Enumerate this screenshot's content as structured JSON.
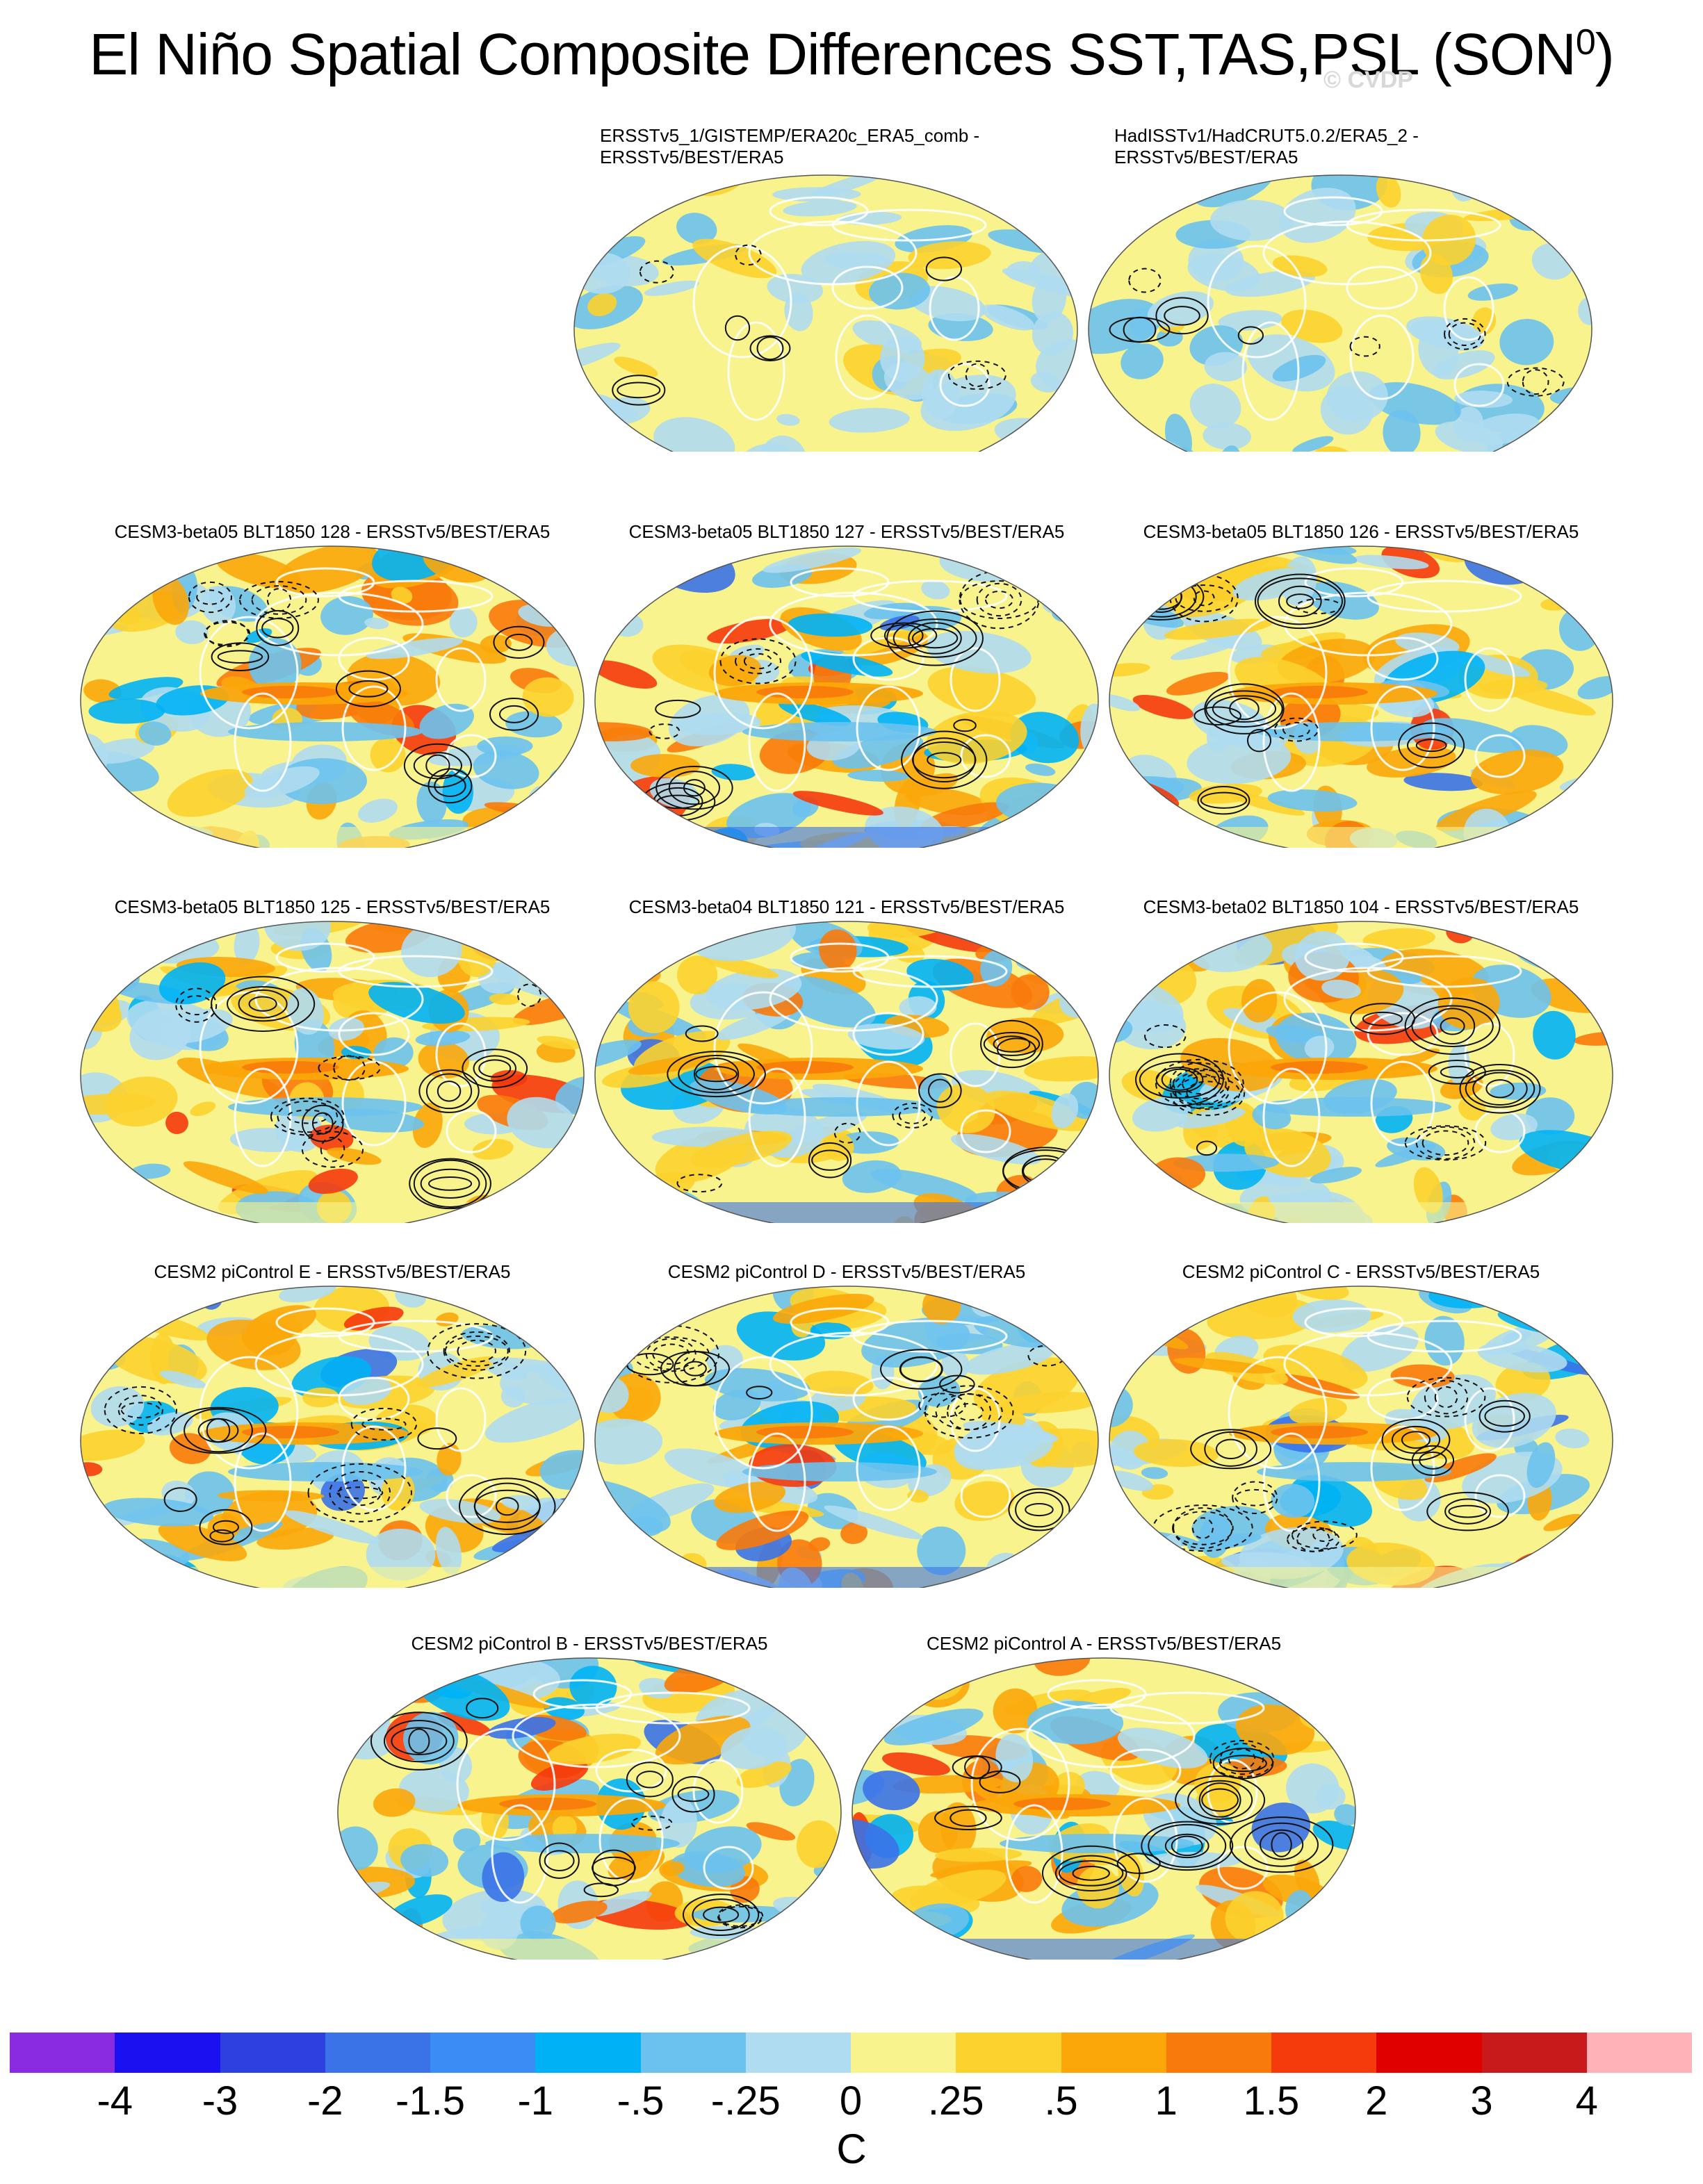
{
  "title": {
    "main": "El Niño Spatial Composite Differences SST,TAS,PSL (SON",
    "sup": "0",
    "close": ")"
  },
  "watermark": "© CVDP",
  "panels": [
    {
      "label": [
        "ERSSTv5_1/GISTEMP/ERA20c_ERA5_comb -",
        "ERSSTv5/BEST/ERA5"
      ],
      "type": "obs"
    },
    {
      "label": [
        "HadISSTv1/HadCRUT5.0.2/ERA5_2 -",
        "ERSSTv5/BEST/ERA5"
      ],
      "type": "obs"
    },
    {
      "label": [
        "CESM3-beta05 BLT1850 128 - ERSSTv5/BEST/ERA5"
      ],
      "type": "model"
    },
    {
      "label": [
        "CESM3-beta05 BLT1850 127 - ERSSTv5/BEST/ERA5"
      ],
      "type": "model"
    },
    {
      "label": [
        "CESM3-beta05 BLT1850 126 - ERSSTv5/BEST/ERA5"
      ],
      "type": "model"
    },
    {
      "label": [
        "CESM3-beta05 BLT1850 125 - ERSSTv5/BEST/ERA5"
      ],
      "type": "model"
    },
    {
      "label": [
        "CESM3-beta04 BLT1850 121 - ERSSTv5/BEST/ERA5"
      ],
      "type": "model"
    },
    {
      "label": [
        "CESM3-beta02 BLT1850 104 - ERSSTv5/BEST/ERA5"
      ],
      "type": "model"
    },
    {
      "label": [
        "CESM2 piControl E - ERSSTv5/BEST/ERA5"
      ],
      "type": "model"
    },
    {
      "label": [
        "CESM2 piControl D - ERSSTv5/BEST/ERA5"
      ],
      "type": "model"
    },
    {
      "label": [
        "CESM2 piControl C - ERSSTv5/BEST/ERA5"
      ],
      "type": "model"
    },
    {
      "label": [
        "CESM2 piControl B - ERSSTv5/BEST/ERA5"
      ],
      "type": "model"
    },
    {
      "label": [
        "CESM2 piControl A - ERSSTv5/BEST/ERA5"
      ],
      "type": "model"
    }
  ],
  "colorbar": {
    "colors": [
      "#8a2be2",
      "#1a10f0",
      "#2d40e0",
      "#3a72e8",
      "#3a8df5",
      "#00b2f5",
      "#6cc2ee",
      "#afdcf0",
      "#f8f38c",
      "#fcd22e",
      "#fba70a",
      "#f87a0a",
      "#f53a0c",
      "#e00000",
      "#c81a1a",
      "#ffb3b8"
    ],
    "ticks": [
      "-4",
      "-3",
      "-2",
      "-1.5",
      "-1",
      "-.5",
      "-.25",
      "0",
      ".25",
      ".5",
      "1",
      "1.5",
      "2",
      "3",
      "4"
    ],
    "unit": "C"
  },
  "chart_data": {
    "type": "heatmap",
    "title": "El Niño Spatial Composite Differences SST,TAS,PSL (SON0)",
    "variables": [
      "SST",
      "TAS",
      "PSL"
    ],
    "season": "SON",
    "reference": "ERSSTv5/BEST/ERA5",
    "colorbar_levels": [
      -4,
      -3,
      -2,
      -1.5,
      -1,
      -0.5,
      -0.25,
      0,
      0.25,
      0.5,
      1,
      1.5,
      2,
      3,
      4
    ],
    "colorbar_unit": "C",
    "panels": [
      "ERSSTv5_1/GISTEMP/ERA20c_ERA5_comb - ERSSTv5/BEST/ERA5",
      "HadISSTv1/HadCRUT5.0.2/ERA5_2 - ERSSTv5/BEST/ERA5",
      "CESM3-beta05 BLT1850 128 - ERSSTv5/BEST/ERA5",
      "CESM3-beta05 BLT1850 127 - ERSSTv5/BEST/ERA5",
      "CESM3-beta05 BLT1850 126 - ERSSTv5/BEST/ERA5",
      "CESM3-beta05 BLT1850 125 - ERSSTv5/BEST/ERA5",
      "CESM3-beta04 BLT1850 121 - ERSSTv5/BEST/ERA5",
      "CESM3-beta02 BLT1850 104 - ERSSTv5/BEST/ERA5",
      "CESM2 piControl E - ERSSTv5/BEST/ERA5",
      "CESM2 piControl D - ERSSTv5/BEST/ERA5",
      "CESM2 piControl C - ERSSTv5/BEST/ERA5",
      "CESM2 piControl B - ERSSTv5/BEST/ERA5",
      "CESM2 piControl A - ERSSTv5/BEST/ERA5"
    ]
  }
}
